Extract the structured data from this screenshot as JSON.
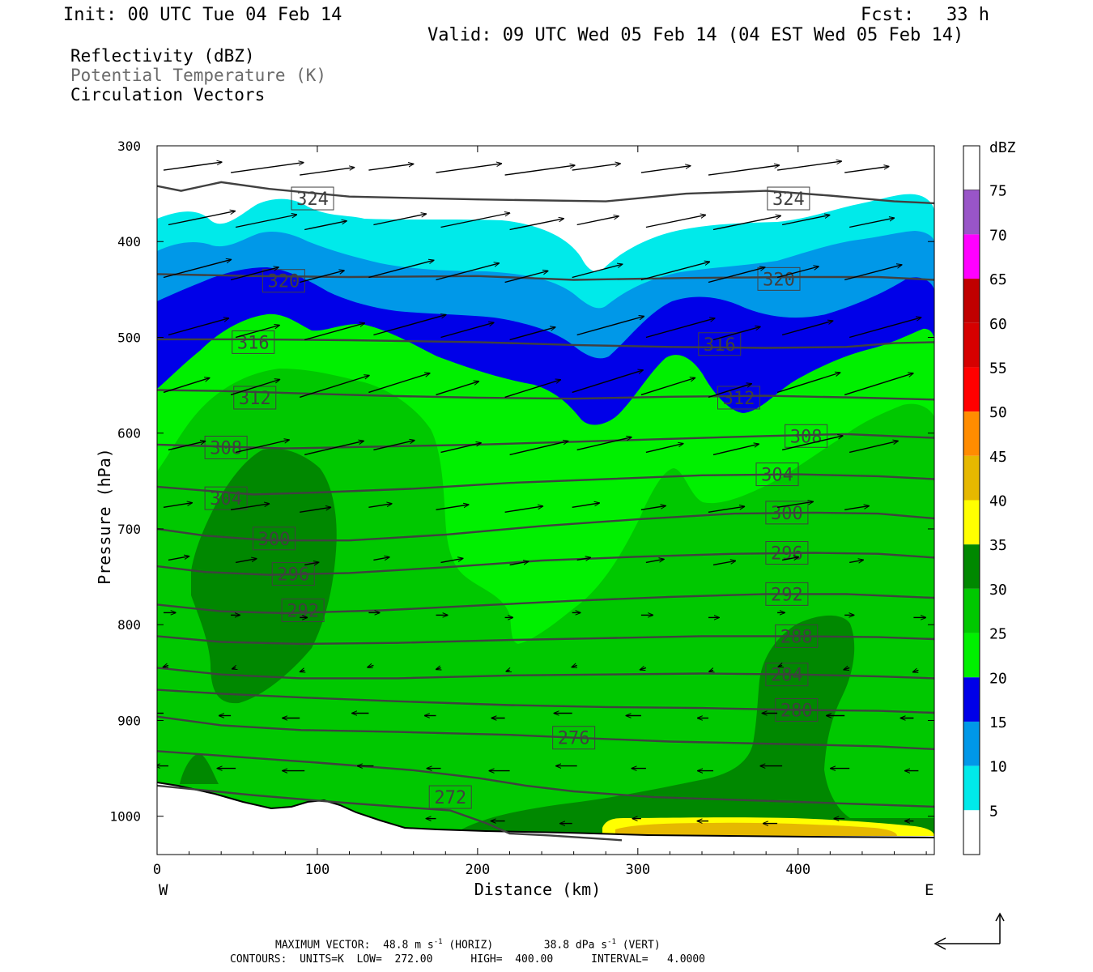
{
  "header": {
    "init": "Init: 00 UTC Tue 04 Feb 14",
    "fcst": "Fcst:   33 h",
    "valid": "Valid: 09 UTC Wed 05 Feb 14 (04 EST Wed 05 Feb 14)"
  },
  "fields": {
    "reflectivity": "Reflectivity (dBZ)",
    "theta": "Potential Temperature (K)",
    "vectors": "Circulation Vectors"
  },
  "footer": {
    "max_vector_label": "MAXIMUM VECTOR:",
    "horiz_value": "48.8",
    "horiz_units": "m s",
    "horiz_tag": "(HORIZ)",
    "vert_value": "38.8",
    "vert_units": "dPa s",
    "vert_tag": "(VERT)",
    "contours_line": "CONTOURS:  UNITS=K  LOW=  272.00      HIGH=  400.00      INTERVAL=   4.0000"
  },
  "colors": {
    "ge5": "#00eaea",
    "ge10": "#0098e8",
    "ge15": "#0000e8",
    "ge20": "#00f000",
    "ge25": "#00c800",
    "ge30": "#008800",
    "ge35": "#ffff00",
    "ge40": "#e6b800",
    "ge45": "#ff8c00",
    "ge50": "#ff0000",
    "ge55": "#d60000",
    "ge60": "#c00000",
    "ge65": "#ff00ff",
    "ge70": "#9955c8",
    "contour": "#404040"
  },
  "chart_data": {
    "type": "cross-section",
    "xlabel": "Distance (km)",
    "ylabel": "Pressure (hPa)",
    "xlim": [
      0,
      485
    ],
    "ylim": [
      1040,
      300
    ],
    "x_ticks": [
      0,
      100,
      200,
      300,
      400
    ],
    "y_ticks": [
      300,
      400,
      500,
      600,
      700,
      800,
      900,
      1000
    ],
    "x_end_labels": {
      "left": "W",
      "right": "E"
    },
    "colorbar": {
      "unit": "dBZ",
      "levels": [
        5,
        10,
        15,
        20,
        25,
        30,
        35,
        40,
        45,
        50,
        55,
        60,
        65,
        70,
        75
      ]
    },
    "contour_labels": [
      {
        "value": "324",
        "x": 97,
        "p": 355
      },
      {
        "value": "324",
        "x": 394,
        "p": 355
      },
      {
        "value": "320",
        "x": 79,
        "p": 441
      },
      {
        "value": "320",
        "x": 388,
        "p": 439
      },
      {
        "value": "316",
        "x": 60,
        "p": 505
      },
      {
        "value": "316",
        "x": 351,
        "p": 507
      },
      {
        "value": "312",
        "x": 61,
        "p": 563
      },
      {
        "value": "312",
        "x": 363,
        "p": 563
      },
      {
        "value": "308",
        "x": 43,
        "p": 615
      },
      {
        "value": "308",
        "x": 405,
        "p": 603
      },
      {
        "value": "304",
        "x": 43,
        "p": 668
      },
      {
        "value": "304",
        "x": 387,
        "p": 643
      },
      {
        "value": "300",
        "x": 73,
        "p": 710
      },
      {
        "value": "300",
        "x": 393,
        "p": 683
      },
      {
        "value": "296",
        "x": 85,
        "p": 747
      },
      {
        "value": "296",
        "x": 393,
        "p": 725
      },
      {
        "value": "292",
        "x": 91,
        "p": 785
      },
      {
        "value": "292",
        "x": 393,
        "p": 768
      },
      {
        "value": "288",
        "x": 399,
        "p": 812
      },
      {
        "value": "284",
        "x": 393,
        "p": 852
      },
      {
        "value": "280",
        "x": 399,
        "p": 889
      },
      {
        "value": "276",
        "x": 260,
        "p": 918
      },
      {
        "value": "272",
        "x": 183,
        "p": 980
      }
    ]
  }
}
